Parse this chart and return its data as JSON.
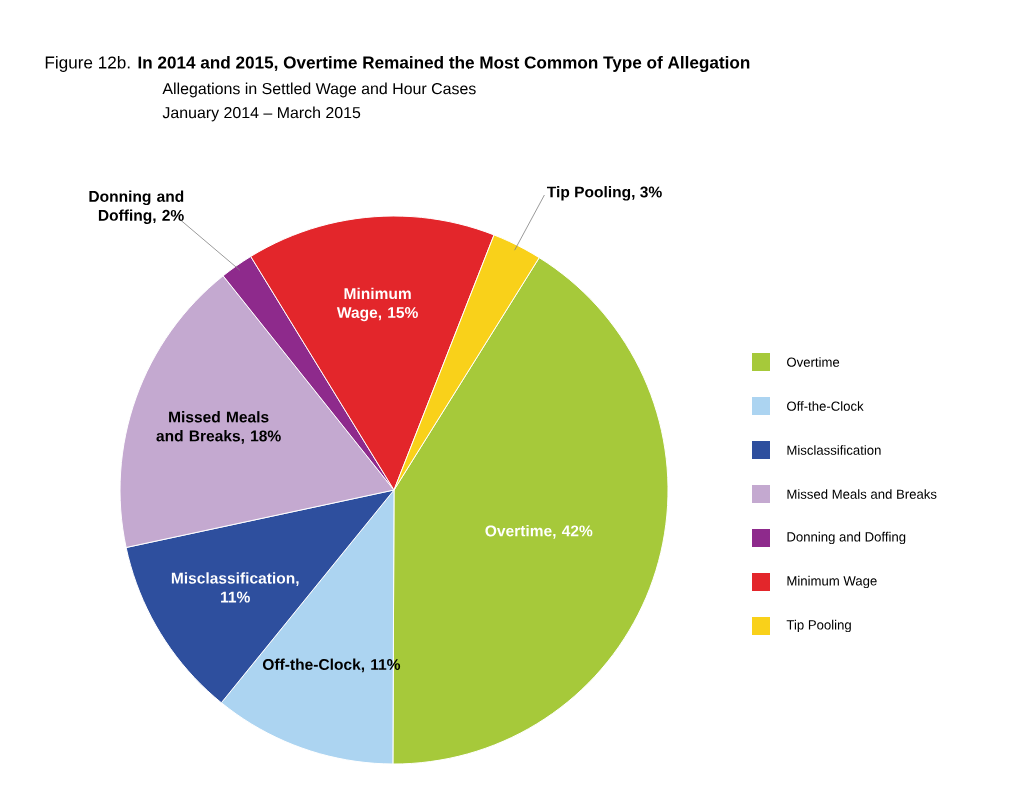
{
  "chart_data": {
    "type": "pie",
    "title": "Figure 12b. **In 2014 and 2015, Overtime Remained the Most Common Type of Allegation**",
    "subtitle": "Allegations in Settled Wage and Hour Cases",
    "annotations": [
      "January 2014 – March 2015"
    ],
    "categories": [
      "Overtime",
      "Off-the-Clock",
      "Misclassification",
      "Missed Meals and Breaks",
      "Donning and Doffing",
      "Minimum Wage",
      "Tip Pooling"
    ],
    "values": [
      42,
      11,
      11,
      18,
      2,
      15,
      3
    ],
    "value_labels": [
      "Overtime, 42%",
      "Off-the-Clock, 11%",
      "Misclassification, 11%",
      "Missed Meals and Breaks, 18%",
      "Donning and Doffing, 2%",
      "Minimum Wage, 15%",
      "Tip Pooling, 3%"
    ],
    "colors": [
      "#a6c93a",
      "#acd4f1",
      "#2e4f9e",
      "#c4a9d0",
      "#8e2a8c",
      "#e3262b",
      "#f9d11a"
    ],
    "legend": "right"
  }
}
